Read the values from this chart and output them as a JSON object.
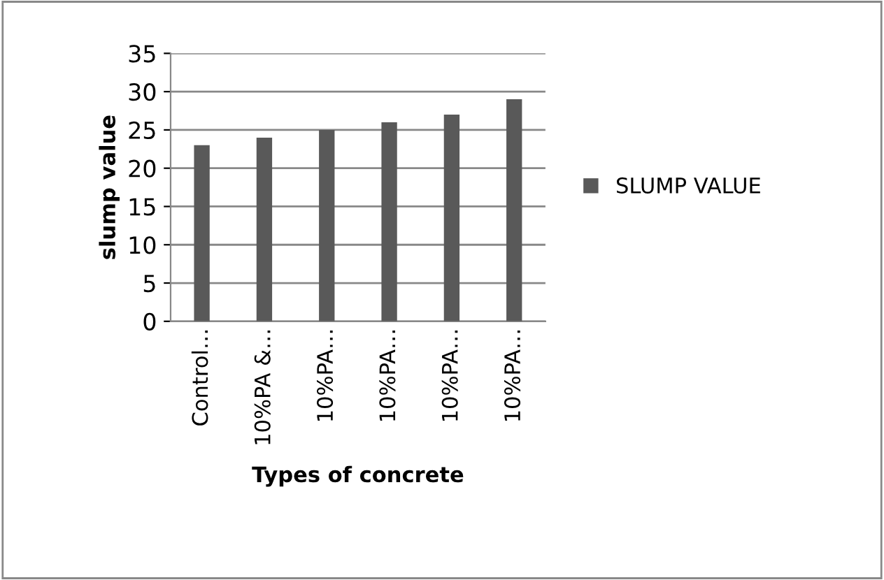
{
  "chart_data": {
    "type": "bar",
    "xlabel": "Types of concrete",
    "ylabel": "slump value",
    "categories": [
      "Control…",
      "10%PA &…",
      "10%PA…",
      "10%PA…",
      "10%PA…",
      "10%PA…"
    ],
    "series": [
      {
        "name": "SLUMP VALUE",
        "color": "#595959",
        "values": [
          23,
          24,
          25,
          26,
          27,
          29
        ]
      }
    ],
    "ylim": [
      0,
      35
    ],
    "yticks": [
      0,
      5,
      10,
      15,
      20,
      25,
      30,
      35
    ],
    "grid": "y",
    "legend": "right"
  }
}
